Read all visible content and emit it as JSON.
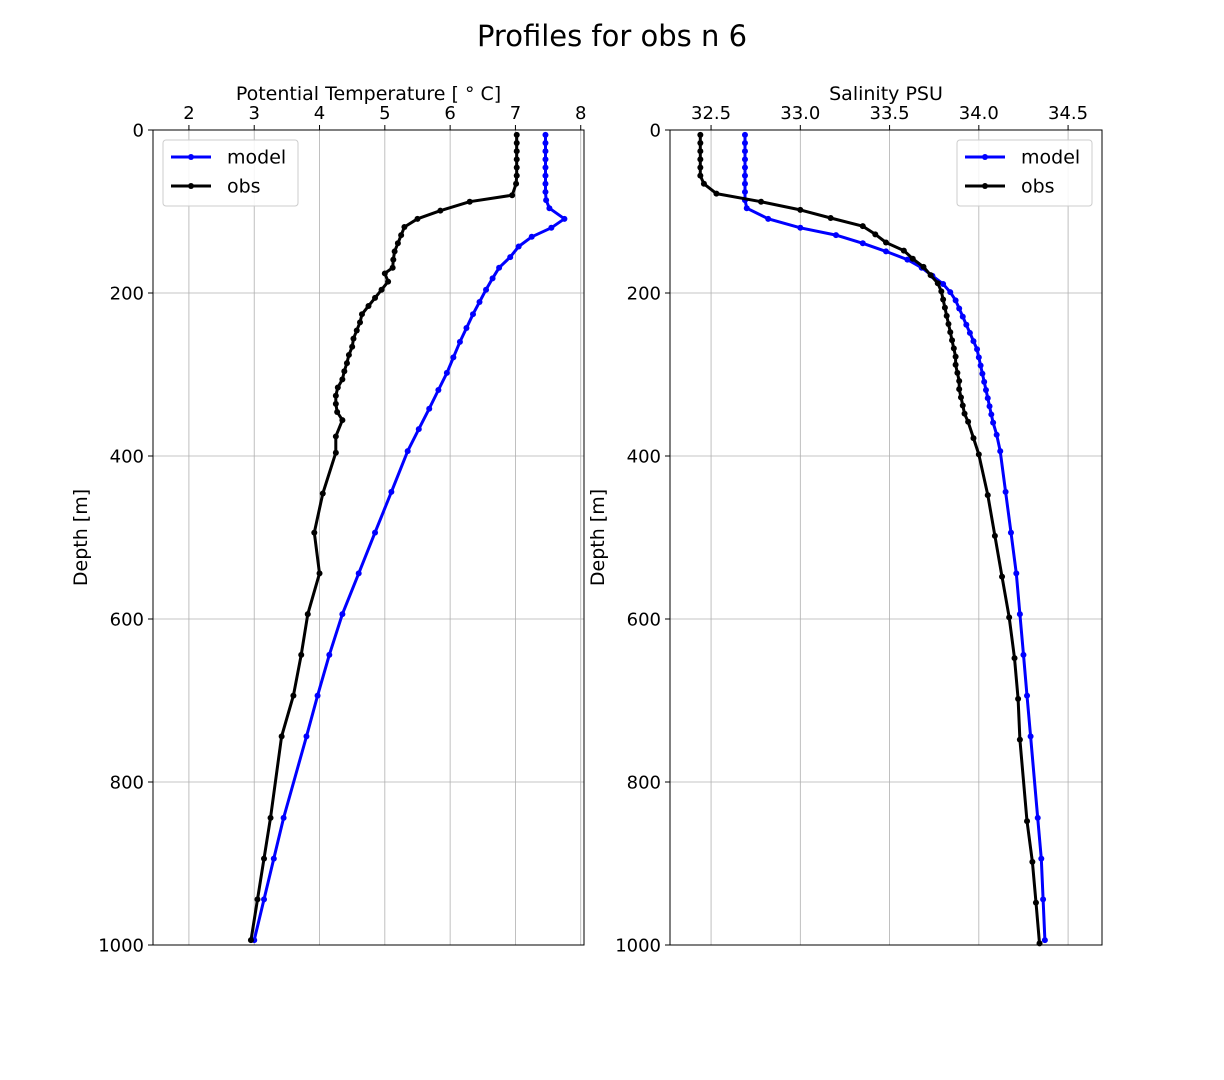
{
  "figure": {
    "title": "Profiles for obs n 6"
  },
  "chart_data": [
    {
      "type": "line",
      "title": "Potential Temperature [$^\\circ$C]",
      "title_display": "Potential Temperature [ ° C]",
      "xlabel": "Potential Temperature [ ° C]",
      "ylabel": "Depth [m]",
      "xlim": [
        1.45,
        8.05
      ],
      "ylim": [
        1000,
        0
      ],
      "y_inverted": true,
      "x_axis_position": "top",
      "xticks": [
        2,
        3,
        4,
        5,
        6,
        7,
        8
      ],
      "xtick_labels": [
        "2",
        "3",
        "4",
        "5",
        "6",
        "7",
        "8"
      ],
      "yticks": [
        0,
        200,
        400,
        600,
        800,
        1000
      ],
      "ytick_labels": [
        "0",
        "200",
        "400",
        "600",
        "800",
        "1000"
      ],
      "grid": true,
      "legend": {
        "position": "top-left",
        "entries": [
          "model",
          "obs"
        ]
      },
      "series": [
        {
          "name": "model",
          "color": "#0000ff",
          "depth": [
            6,
            16,
            26,
            36,
            46,
            56,
            66,
            76,
            86,
            96,
            109,
            120,
            131,
            143,
            156,
            169,
            182,
            196,
            211,
            226,
            243,
            260,
            279,
            298,
            319,
            342,
            367,
            394,
            444,
            494,
            544,
            594,
            644,
            694,
            744,
            844,
            894,
            944,
            994
          ],
          "values": [
            7.46,
            7.46,
            7.46,
            7.46,
            7.46,
            7.46,
            7.46,
            7.46,
            7.47,
            7.52,
            7.75,
            7.55,
            7.25,
            7.05,
            6.92,
            6.75,
            6.65,
            6.55,
            6.45,
            6.35,
            6.25,
            6.15,
            6.05,
            5.95,
            5.82,
            5.68,
            5.52,
            5.35,
            5.1,
            4.85,
            4.6,
            4.35,
            4.15,
            3.97,
            3.8,
            3.45,
            3.3,
            3.15,
            3.0
          ]
        },
        {
          "name": "obs",
          "color": "#000000",
          "depth": [
            6,
            16,
            26,
            36,
            46,
            56,
            66,
            80,
            88,
            99,
            109,
            119,
            129,
            139,
            149,
            159,
            169,
            176,
            186,
            196,
            206,
            216,
            226,
            236,
            246,
            256,
            266,
            276,
            286,
            296,
            306,
            316,
            326,
            336,
            346,
            356,
            376,
            396,
            446,
            494,
            544,
            594,
            644,
            694,
            744,
            844,
            894,
            944,
            994
          ],
          "values": [
            7.02,
            7.02,
            7.02,
            7.02,
            7.02,
            7.02,
            7.01,
            6.95,
            6.3,
            5.85,
            5.5,
            5.3,
            5.25,
            5.2,
            5.15,
            5.13,
            5.12,
            5.0,
            5.05,
            4.95,
            4.85,
            4.75,
            4.65,
            4.62,
            4.57,
            4.52,
            4.5,
            4.45,
            4.42,
            4.38,
            4.35,
            4.28,
            4.25,
            4.25,
            4.27,
            4.35,
            4.25,
            4.25,
            4.05,
            3.92,
            4.0,
            3.82,
            3.72,
            3.6,
            3.42,
            3.25,
            3.15,
            3.05,
            2.95
          ]
        }
      ]
    },
    {
      "type": "line",
      "title": "Salinity PSU",
      "xlabel": "Salinity PSU",
      "ylabel": "Depth [m]",
      "xlim": [
        32.27,
        34.69
      ],
      "ylim": [
        1000,
        0
      ],
      "y_inverted": true,
      "x_axis_position": "top",
      "xticks": [
        32.5,
        33.0,
        33.5,
        34.0,
        34.5
      ],
      "xtick_labels": [
        "32.5",
        "33.0",
        "33.5",
        "34.0",
        "34.5"
      ],
      "yticks": [
        0,
        200,
        400,
        600,
        800,
        1000
      ],
      "ytick_labels": [
        "0",
        "200",
        "400",
        "600",
        "800",
        "1000"
      ],
      "grid": true,
      "legend": {
        "position": "top-right",
        "entries": [
          "model",
          "obs"
        ]
      },
      "series": [
        {
          "name": "model",
          "color": "#0000ff",
          "depth": [
            6,
            16,
            26,
            36,
            46,
            56,
            66,
            76,
            86,
            96,
            109,
            120,
            129,
            139,
            149,
            159,
            169,
            179,
            189,
            199,
            209,
            219,
            229,
            239,
            249,
            259,
            269,
            279,
            289,
            299,
            309,
            319,
            329,
            339,
            349,
            359,
            374,
            394,
            444,
            494,
            544,
            594,
            644,
            694,
            744,
            844,
            894,
            944,
            994
          ],
          "values": [
            32.69,
            32.69,
            32.69,
            32.69,
            32.69,
            32.69,
            32.69,
            32.69,
            32.69,
            32.7,
            32.82,
            33.0,
            33.2,
            33.35,
            33.48,
            33.6,
            33.68,
            33.74,
            33.8,
            33.84,
            33.87,
            33.89,
            33.91,
            33.93,
            33.95,
            33.97,
            33.99,
            34.0,
            34.01,
            34.02,
            34.03,
            34.04,
            34.05,
            34.06,
            34.07,
            34.08,
            34.1,
            34.12,
            34.15,
            34.18,
            34.21,
            34.23,
            34.25,
            34.27,
            34.29,
            34.33,
            34.35,
            34.36,
            34.37
          ]
        },
        {
          "name": "obs",
          "color": "#000000",
          "depth": [
            6,
            16,
            26,
            36,
            46,
            56,
            66,
            78,
            88,
            98,
            108,
            118,
            128,
            138,
            148,
            158,
            168,
            178,
            188,
            198,
            208,
            218,
            228,
            238,
            248,
            258,
            268,
            278,
            288,
            298,
            308,
            318,
            328,
            338,
            348,
            358,
            378,
            398,
            448,
            498,
            548,
            598,
            648,
            698,
            748,
            848,
            898,
            948,
            998
          ],
          "values": [
            32.44,
            32.44,
            32.44,
            32.44,
            32.44,
            32.44,
            32.46,
            32.53,
            32.78,
            33.0,
            33.17,
            33.35,
            33.42,
            33.48,
            33.58,
            33.63,
            33.69,
            33.73,
            33.77,
            33.79,
            33.8,
            33.81,
            33.82,
            33.83,
            33.84,
            33.85,
            33.86,
            33.87,
            33.87,
            33.88,
            33.89,
            33.89,
            33.9,
            33.91,
            33.92,
            33.94,
            33.97,
            34.0,
            34.05,
            34.09,
            34.13,
            34.17,
            34.2,
            34.22,
            34.23,
            34.27,
            34.3,
            34.32,
            34.34
          ]
        }
      ]
    }
  ]
}
